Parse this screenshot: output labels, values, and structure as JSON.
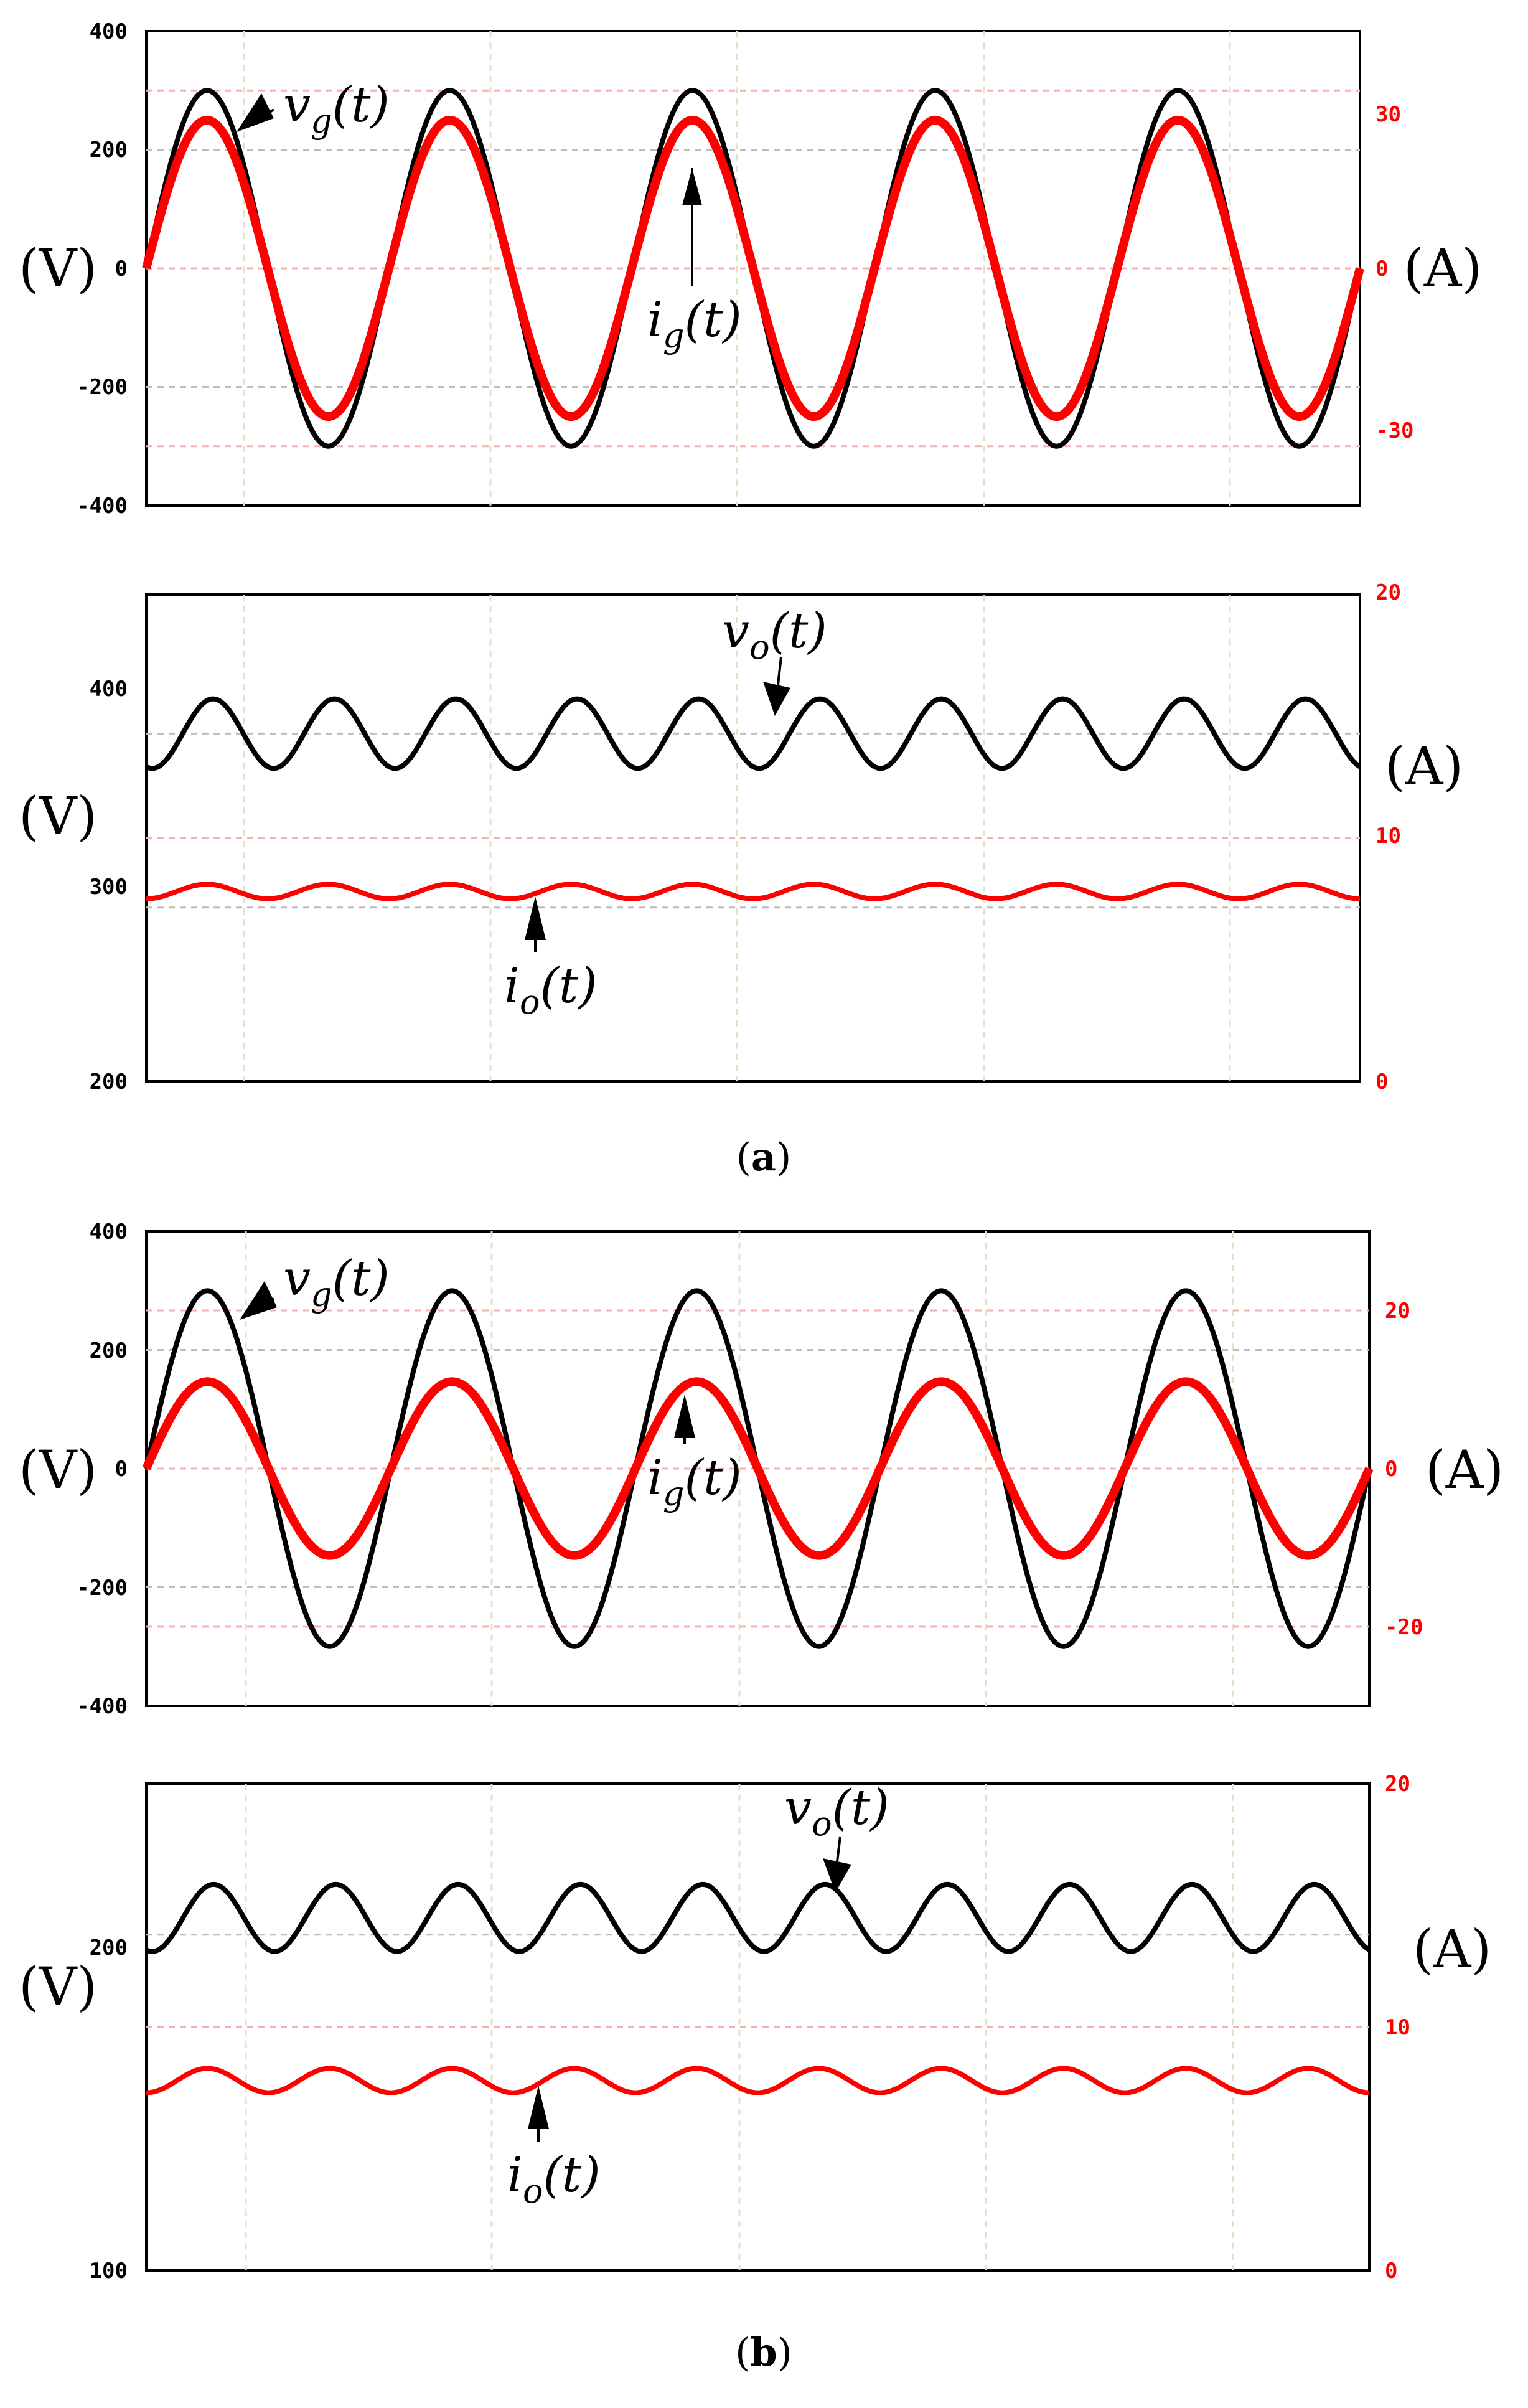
{
  "figure": {
    "captions": {
      "a": "a",
      "b": "b"
    }
  },
  "chart_data": [
    {
      "id": "a1",
      "type": "line",
      "left_unit": "(V)",
      "right_unit": "(A)",
      "left_ylim": [
        -400,
        400
      ],
      "right_ylim": [
        -40,
        40
      ],
      "left_ticks": [
        "400",
        "200",
        "0",
        "-200",
        "-400"
      ],
      "right_ticks": [
        "30",
        "0",
        "-30"
      ],
      "grid": true,
      "cycles": 5,
      "series": [
        {
          "axis": "left",
          "color": "#000000",
          "kind": "sine",
          "amplitude": 300,
          "offset": 0,
          "label": "v_g(t)"
        },
        {
          "axis": "right",
          "color": "#ff0000",
          "kind": "sine",
          "amplitude": 25,
          "offset": 0,
          "label": "i_g(t)"
        }
      ]
    },
    {
      "id": "a2",
      "type": "line",
      "left_unit": "(V)",
      "right_unit": "(A)",
      "left_ylim": [
        200,
        480
      ],
      "right_ylim": [
        0,
        20
      ],
      "left_ticks": [
        "400",
        "300",
        "200"
      ],
      "right_ticks": [
        "20",
        "10",
        "0"
      ],
      "grid": true,
      "cycles": 10,
      "series": [
        {
          "axis": "left",
          "color": "#000000",
          "kind": "ripple",
          "amplitude": 20,
          "offset": 400,
          "label": "v_o(t)"
        },
        {
          "axis": "right",
          "color": "#ff0000",
          "kind": "ripple",
          "amplitude": 0.3,
          "offset": 7.8,
          "label": "i_o(t)"
        }
      ]
    },
    {
      "id": "b1",
      "type": "line",
      "left_unit": "(V)",
      "right_unit": "(A)",
      "left_ylim": [
        -400,
        400
      ],
      "right_ylim": [
        -30,
        30
      ],
      "left_ticks": [
        "400",
        "200",
        "0",
        "-200",
        "-400"
      ],
      "right_ticks": [
        "20",
        "0",
        "-20"
      ],
      "grid": true,
      "cycles": 5,
      "series": [
        {
          "axis": "left",
          "color": "#000000",
          "kind": "sine",
          "amplitude": 300,
          "offset": 0,
          "label": "v_g(t)"
        },
        {
          "axis": "right",
          "color": "#ff0000",
          "kind": "sine",
          "amplitude": 11,
          "offset": 0,
          "label": "i_g(t)"
        }
      ]
    },
    {
      "id": "b2",
      "type": "line",
      "left_unit": "(V)",
      "right_unit": "(A)",
      "left_ylim": [
        100,
        245
      ],
      "right_ylim": [
        0,
        20
      ],
      "left_ticks": [
        "200",
        "100"
      ],
      "right_ticks": [
        "20",
        "10",
        "0"
      ],
      "grid": true,
      "cycles": 10,
      "series": [
        {
          "axis": "left",
          "color": "#000000",
          "kind": "ripple",
          "amplitude": 10,
          "offset": 205,
          "label": "v_o(t)"
        },
        {
          "axis": "right",
          "color": "#ff0000",
          "kind": "ripple",
          "amplitude": 0.5,
          "offset": 7.8,
          "label": "i_o(t)"
        }
      ]
    }
  ]
}
